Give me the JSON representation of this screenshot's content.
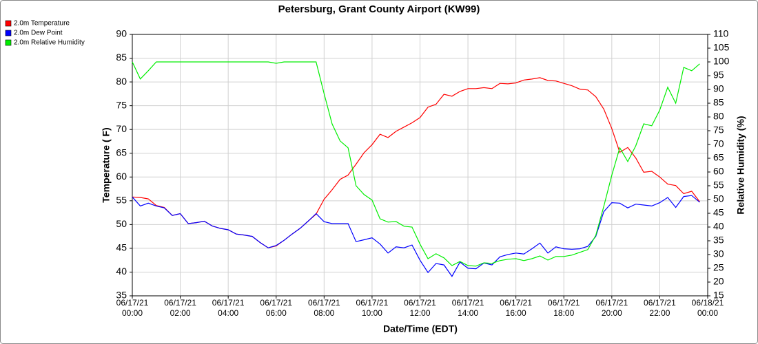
{
  "chart_data": {
    "type": "line",
    "title": "Petersburg, Grant County Airport (KW99)",
    "xlabel": "Date/Time (EDT)",
    "ylabel": "Temperature ( F)",
    "y2label": "Relative Humidity (%)",
    "legend": "top-left",
    "grid": true,
    "x": [
      "2021-06-17T00:00",
      "2021-06-17T00:20",
      "2021-06-17T00:40",
      "2021-06-17T01:00",
      "2021-06-17T01:20",
      "2021-06-17T01:40",
      "2021-06-17T02:00",
      "2021-06-17T02:20",
      "2021-06-17T02:40",
      "2021-06-17T03:00",
      "2021-06-17T03:20",
      "2021-06-17T03:40",
      "2021-06-17T04:00",
      "2021-06-17T04:20",
      "2021-06-17T04:40",
      "2021-06-17T05:00",
      "2021-06-17T05:20",
      "2021-06-17T05:40",
      "2021-06-17T06:00",
      "2021-06-17T06:20",
      "2021-06-17T06:40",
      "2021-06-17T07:00",
      "2021-06-17T07:20",
      "2021-06-17T07:40",
      "2021-06-17T08:00",
      "2021-06-17T08:20",
      "2021-06-17T08:40",
      "2021-06-17T09:00",
      "2021-06-17T09:20",
      "2021-06-17T09:40",
      "2021-06-17T10:00",
      "2021-06-17T10:20",
      "2021-06-17T10:40",
      "2021-06-17T11:00",
      "2021-06-17T11:20",
      "2021-06-17T11:40",
      "2021-06-17T12:00",
      "2021-06-17T12:20",
      "2021-06-17T12:40",
      "2021-06-17T13:00",
      "2021-06-17T13:20",
      "2021-06-17T13:40",
      "2021-06-17T14:00",
      "2021-06-17T14:20",
      "2021-06-17T14:40",
      "2021-06-17T15:00",
      "2021-06-17T15:20",
      "2021-06-17T15:40",
      "2021-06-17T16:00",
      "2021-06-17T16:20",
      "2021-06-17T16:40",
      "2021-06-17T17:00",
      "2021-06-17T17:20",
      "2021-06-17T17:40",
      "2021-06-17T18:00",
      "2021-06-17T18:20",
      "2021-06-17T18:40",
      "2021-06-17T19:00",
      "2021-06-17T19:20",
      "2021-06-17T19:40",
      "2021-06-17T20:00",
      "2021-06-17T20:20",
      "2021-06-17T20:40",
      "2021-06-17T21:00",
      "2021-06-17T21:20",
      "2021-06-17T21:40",
      "2021-06-17T22:00",
      "2021-06-17T22:20",
      "2021-06-17T22:40",
      "2021-06-17T23:00",
      "2021-06-17T23:20",
      "2021-06-17T23:40"
    ],
    "series": [
      {
        "name": "2.0m Temperature",
        "color": "#ff0000",
        "values": [
          55.8,
          55.7,
          55.4,
          54.0,
          53.6,
          51.9,
          52.3,
          50.2,
          50.4,
          50.7,
          49.7,
          49.2,
          48.9,
          48.0,
          47.8,
          47.5,
          46.2,
          45.1,
          45.5,
          46.7,
          48.0,
          49.2,
          50.7,
          52.2,
          55.3,
          57.3,
          59.5,
          60.4,
          62.7,
          65.1,
          66.8,
          69.0,
          68.3,
          69.6,
          70.5,
          71.4,
          72.5,
          74.7,
          75.3,
          77.4,
          77.0,
          78.0,
          78.6,
          78.6,
          78.8,
          78.6,
          79.7,
          79.6,
          79.8,
          80.4,
          80.6,
          80.9,
          80.3,
          80.2,
          79.7,
          79.2,
          78.5,
          78.3,
          76.9,
          74.3,
          70.2,
          65.2,
          66.2,
          64.0,
          61.0,
          61.2,
          60.0,
          58.5,
          58.2,
          56.5,
          57.0,
          54.8
        ]
      },
      {
        "name": "2.0m Dew Point",
        "color": "#0000ff",
        "values": [
          55.8,
          53.9,
          54.5,
          53.9,
          53.5,
          51.9,
          52.3,
          50.2,
          50.4,
          50.7,
          49.7,
          49.2,
          48.9,
          48.0,
          47.8,
          47.5,
          46.2,
          45.1,
          45.6,
          46.7,
          48.0,
          49.2,
          50.7,
          52.3,
          50.6,
          50.2,
          50.2,
          50.2,
          46.4,
          46.8,
          47.2,
          45.9,
          44.0,
          45.3,
          45.1,
          45.7,
          42.5,
          39.9,
          41.8,
          41.5,
          39.1,
          42.1,
          40.8,
          40.7,
          41.9,
          41.5,
          43.2,
          43.7,
          44.0,
          43.8,
          44.9,
          46.1,
          44.0,
          45.3,
          44.9,
          44.8,
          44.9,
          45.4,
          47.5,
          52.7,
          54.6,
          54.5,
          53.5,
          54.3,
          54.1,
          53.9,
          54.6,
          55.7,
          53.6,
          55.9,
          56.1,
          54.7
        ]
      },
      {
        "name": "2.0m Relative Humidity",
        "color": "#00ee00",
        "axis": "y2",
        "values": [
          100,
          93.8,
          96.8,
          100,
          100,
          100,
          100,
          100,
          100,
          100,
          100,
          100,
          100,
          100,
          100,
          100,
          100,
          100,
          99.5,
          100,
          100,
          100,
          100,
          100,
          88.5,
          77.5,
          71.3,
          68.8,
          55,
          51.8,
          49.8,
          43,
          41.8,
          42,
          40.3,
          40,
          33.8,
          28.5,
          30.3,
          28.8,
          26,
          27.5,
          26,
          25.8,
          27,
          26.8,
          27.8,
          28.3,
          28.5,
          27.8,
          28.5,
          29.5,
          28,
          29.3,
          29.3,
          29.8,
          30.8,
          31.8,
          37,
          47.5,
          58.8,
          68.8,
          63.8,
          69.5,
          77.5,
          76.8,
          82.5,
          90.8,
          85,
          98,
          96.8,
          99.3
        ]
      }
    ],
    "xlim": [
      "2021-06-17T00:00",
      "2021-06-18T00:00"
    ],
    "xticks": [
      {
        "value": "2021-06-17T00:00",
        "label": "06/17/21 00:00"
      },
      {
        "value": "2021-06-17T02:00",
        "label": "06/17/21 02:00"
      },
      {
        "value": "2021-06-17T04:00",
        "label": "06/17/21 04:00"
      },
      {
        "value": "2021-06-17T06:00",
        "label": "06/17/21 06:00"
      },
      {
        "value": "2021-06-17T08:00",
        "label": "06/17/21 08:00"
      },
      {
        "value": "2021-06-17T10:00",
        "label": "06/17/21 10:00"
      },
      {
        "value": "2021-06-17T12:00",
        "label": "06/17/21 12:00"
      },
      {
        "value": "2021-06-17T14:00",
        "label": "06/17/21 14:00"
      },
      {
        "value": "2021-06-17T16:00",
        "label": "06/17/21 16:00"
      },
      {
        "value": "2021-06-17T18:00",
        "label": "06/17/21 18:00"
      },
      {
        "value": "2021-06-17T20:00",
        "label": "06/17/21 20:00"
      },
      {
        "value": "2021-06-17T22:00",
        "label": "06/17/21 22:00"
      },
      {
        "value": "2021-06-18T00:00",
        "label": "06/18/21 00:00"
      }
    ],
    "ylim": [
      35,
      90
    ],
    "yticks": [
      35,
      40,
      45,
      50,
      55,
      60,
      65,
      70,
      75,
      80,
      85,
      90
    ],
    "y2lim": [
      15,
      110
    ],
    "y2ticks": [
      15,
      20,
      25,
      30,
      35,
      40,
      45,
      50,
      55,
      60,
      65,
      70,
      75,
      80,
      85,
      90,
      95,
      100,
      105,
      110
    ]
  }
}
